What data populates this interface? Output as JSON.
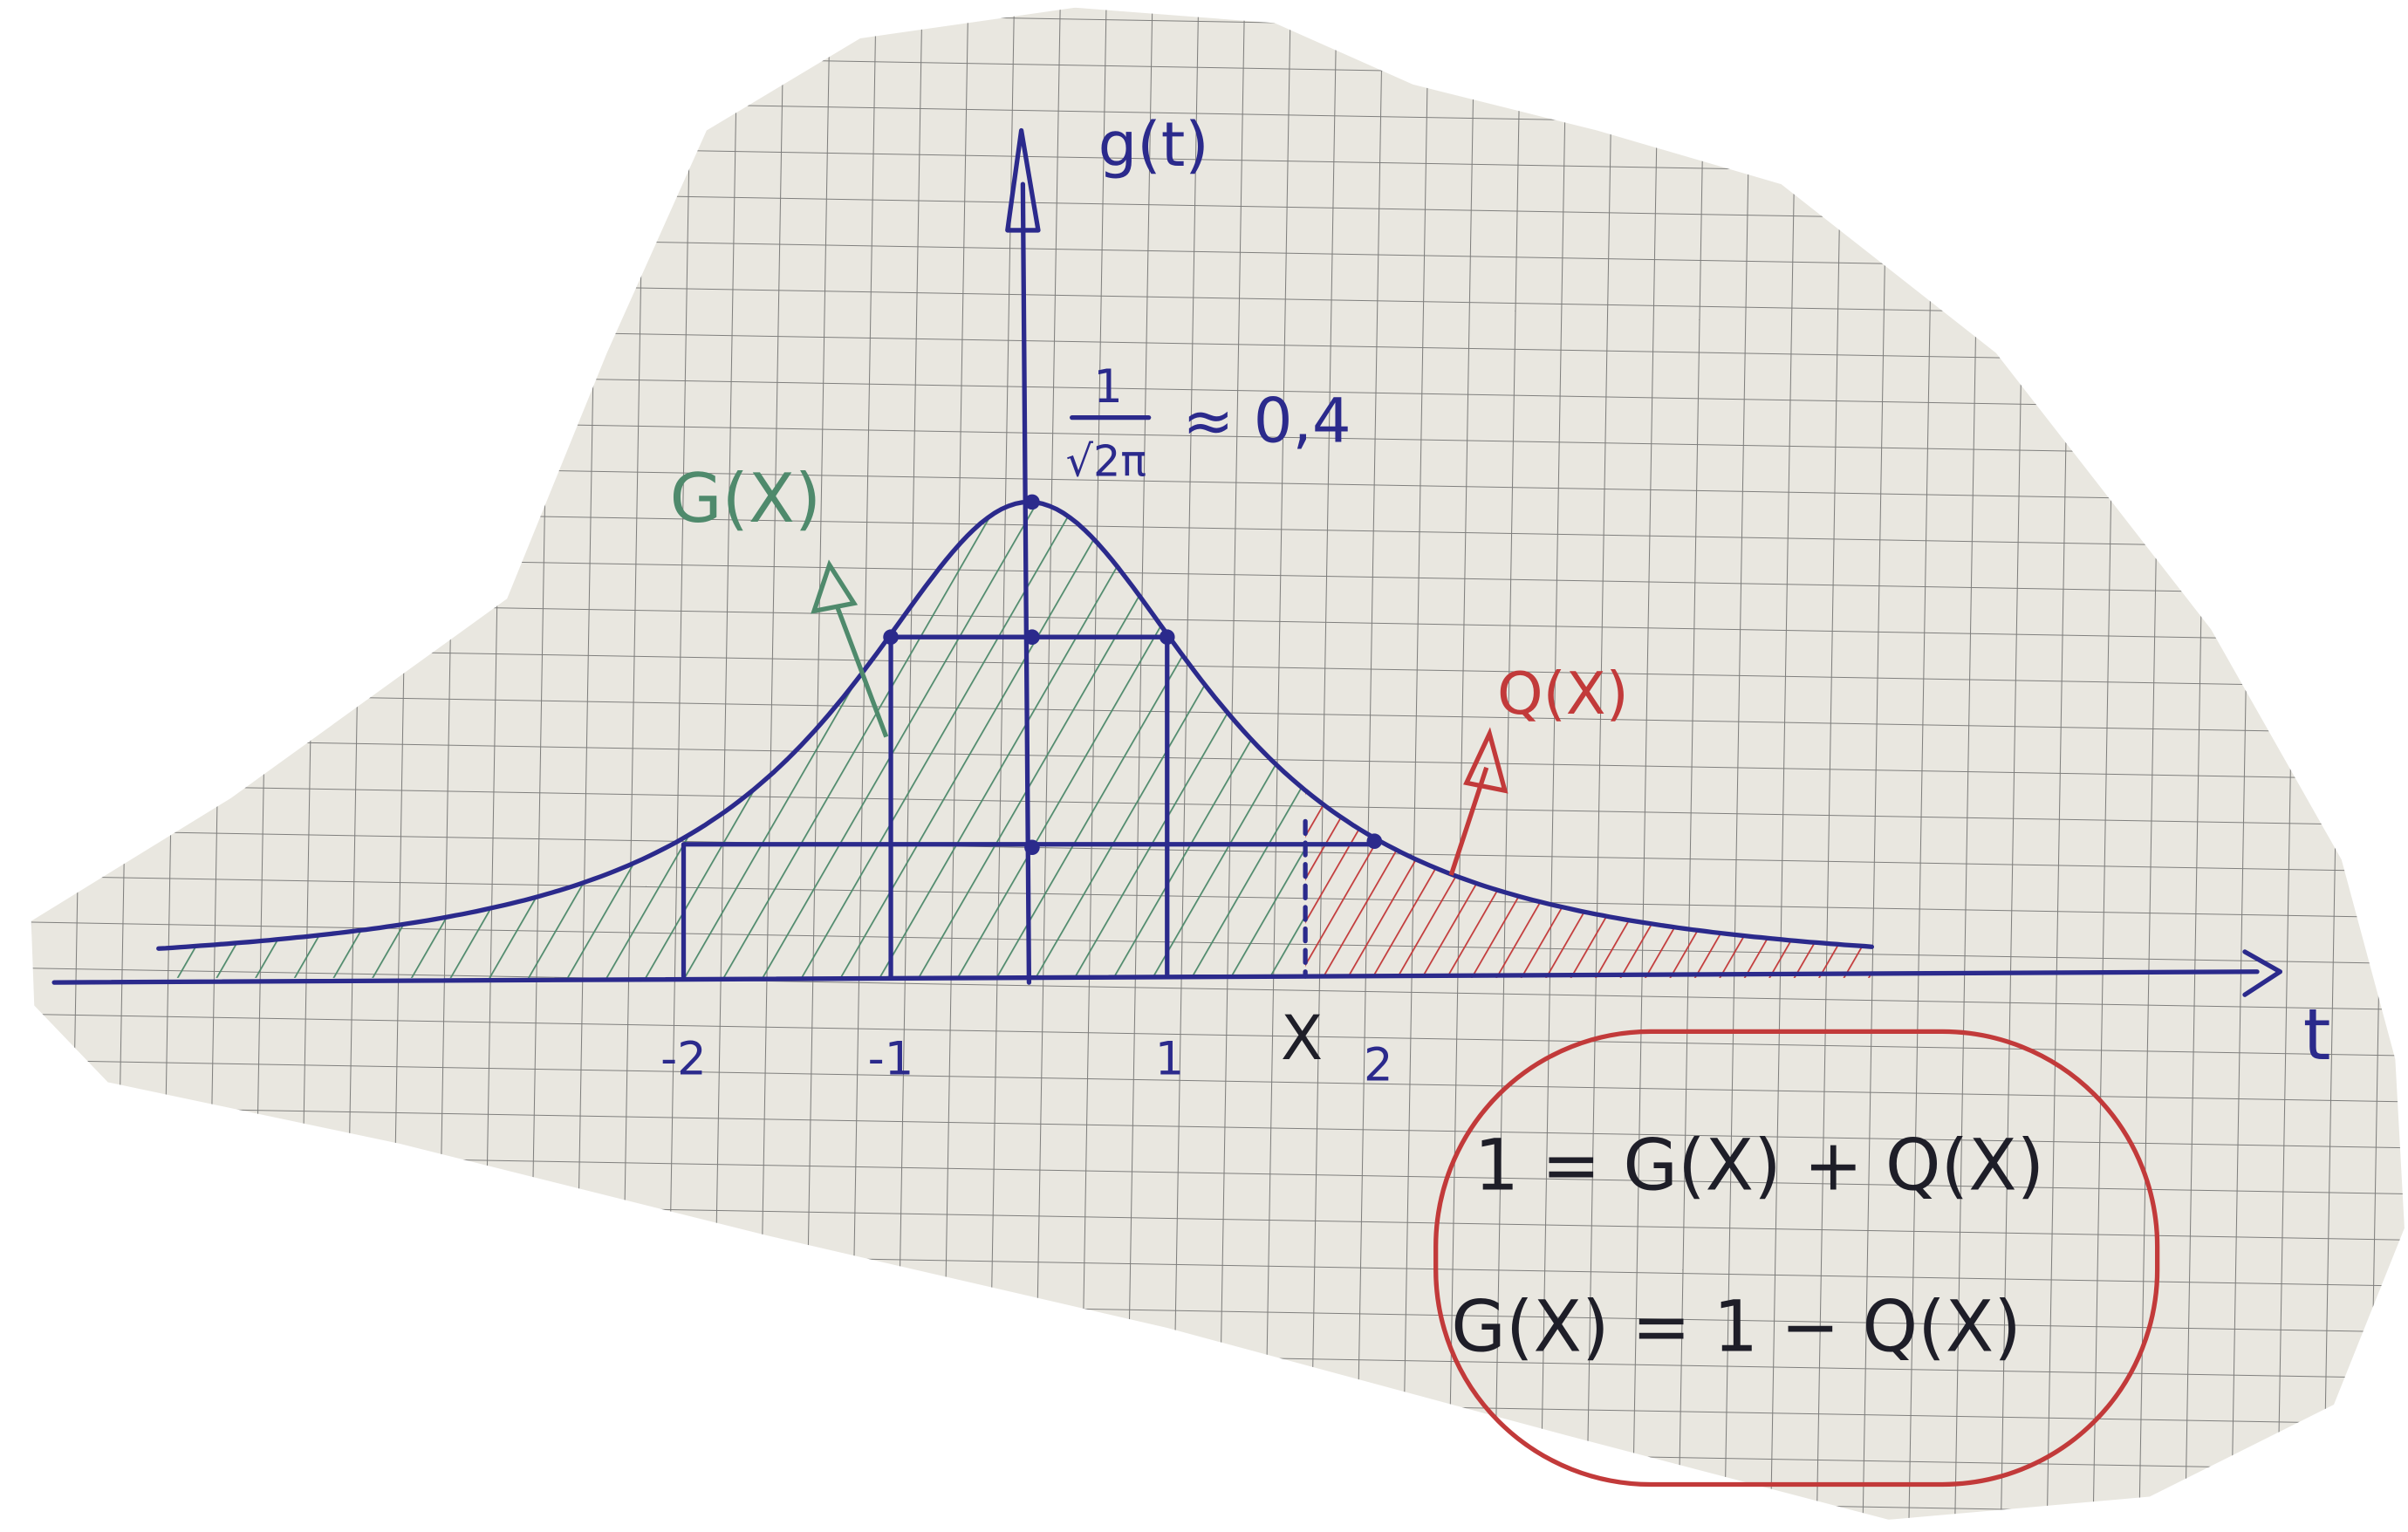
{
  "axes": {
    "y_label": "g(t)",
    "x_label": "t",
    "ticks": [
      "-2",
      "-1",
      "1",
      "2"
    ],
    "x_marker": "X"
  },
  "peak": {
    "numerator": "1",
    "denominator": "√2π",
    "approx": "≈ 0,4"
  },
  "regions": {
    "left": "G(X)",
    "right": "Q(X)"
  },
  "equations": [
    "1 = G(X) + Q(X)",
    "G(X) = 1 − Q(X)"
  ]
}
